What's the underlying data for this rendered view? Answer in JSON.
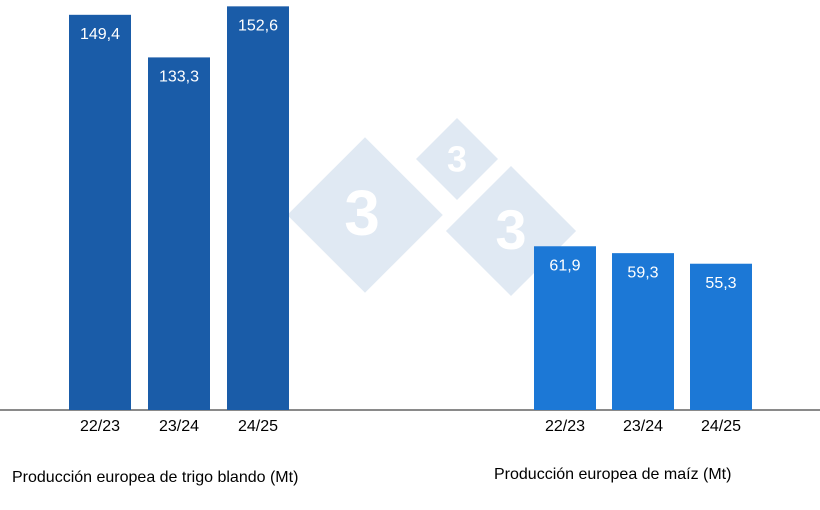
{
  "logo_text": "3",
  "chart_data": [
    {
      "type": "bar",
      "title": "Producción europea de trigo blando (Mt)",
      "categories": [
        "22/23",
        "23/24",
        "24/25"
      ],
      "values": [
        149.4,
        133.3,
        152.6
      ],
      "value_labels": [
        "149,4",
        "133,3",
        "152,6"
      ],
      "color": "#1a5ca8",
      "ylim": [
        0,
        155
      ]
    },
    {
      "type": "bar",
      "title": "Producción europea de maíz (Mt)",
      "categories": [
        "22/23",
        "23/24",
        "24/25"
      ],
      "values": [
        61.9,
        59.3,
        55.3
      ],
      "value_labels": [
        "61,9",
        "59,3",
        "55,3"
      ],
      "color": "#1c78d6",
      "ylim": [
        0,
        155
      ]
    }
  ]
}
